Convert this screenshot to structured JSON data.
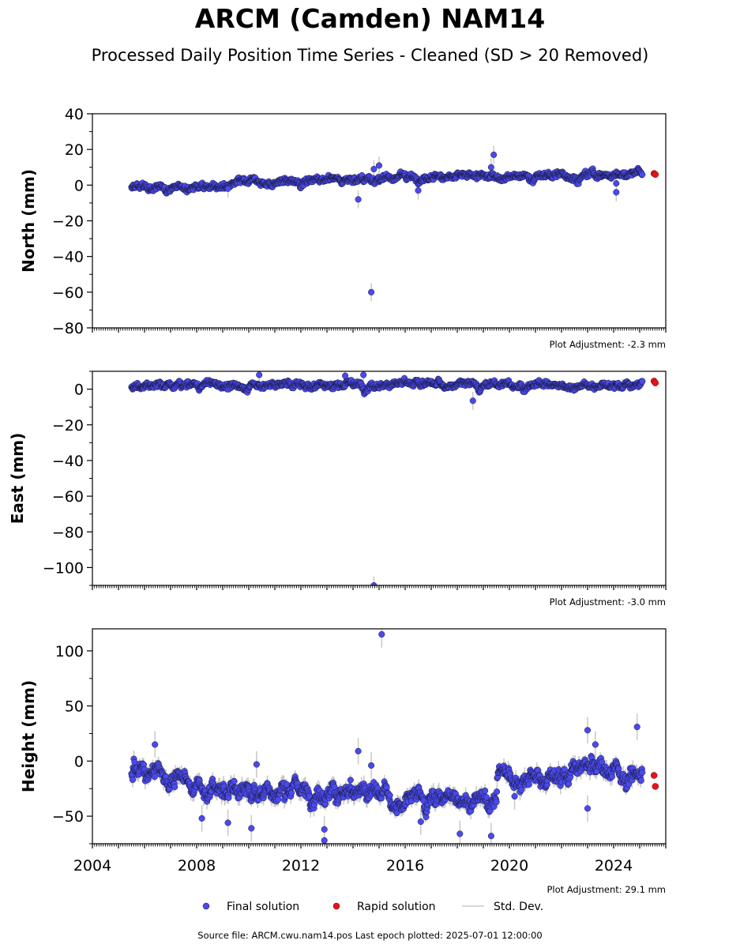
{
  "header": {
    "title": "ARCM (Camden) NAM14",
    "subtitle": "Processed Daily Position Time Series - Cleaned (SD > 20 Removed)"
  },
  "footer": {
    "source": "Source file: ARCM.cwu.nam14.pos  Last epoch plotted: 2025-07-01 12:00:00"
  },
  "legend": {
    "final": "Final solution",
    "rapid": "Rapid solution",
    "sd": "Std. Dev."
  },
  "colors": {
    "final": "#4a4aec",
    "rapid": "#e8121a",
    "sd": "#c8c8c8"
  },
  "chart_data": [
    {
      "type": "scatter",
      "panel": "north",
      "ylabel": "North (mm)",
      "ylim": [
        -80,
        40
      ],
      "yticks": [
        -80,
        -60,
        -40,
        -20,
        0,
        20,
        40
      ],
      "ytick_labels": [
        "−80",
        "−60",
        "−40",
        "−20",
        "0",
        "20",
        "40"
      ],
      "xlim": [
        2004.0,
        2026.0
      ],
      "xticks": [],
      "adjustment": "Plot Adjustment: -2.3 mm",
      "trend": [
        [
          2005.5,
          -2.0
        ],
        [
          2012.0,
          2.5
        ],
        [
          2017.0,
          5.0
        ],
        [
          2020.0,
          5.0
        ],
        [
          2024.0,
          6.0
        ],
        [
          2025.1,
          7.0
        ]
      ],
      "noise": 2.0,
      "outliers": [
        [
          2009.2,
          -2.0
        ],
        [
          2014.2,
          -8.0
        ],
        [
          2014.8,
          9.0
        ],
        [
          2014.7,
          -60.0
        ],
        [
          2016.5,
          -3.0
        ],
        [
          2019.4,
          17.0
        ],
        [
          2019.3,
          10.0
        ],
        [
          2024.1,
          1.0
        ],
        [
          2024.1,
          -4.0
        ],
        [
          2015.0,
          11.0
        ]
      ],
      "rapid": [
        [
          2025.55,
          6.5
        ],
        [
          2025.6,
          6.0
        ]
      ]
    },
    {
      "type": "scatter",
      "panel": "east",
      "ylabel": "East (mm)",
      "ylim": [
        -110,
        10
      ],
      "yticks": [
        -100,
        -80,
        -60,
        -40,
        -20,
        0
      ],
      "ytick_labels": [
        "−100",
        "−80",
        "−60",
        "−40",
        "−20",
        "0"
      ],
      "xlim": [
        2004.0,
        2026.0
      ],
      "xticks": [],
      "adjustment": "Plot Adjustment: -3.0 mm",
      "trend": [
        [
          2005.5,
          1.5
        ],
        [
          2015.0,
          2.5
        ],
        [
          2020.0,
          2.5
        ],
        [
          2025.1,
          2.0
        ]
      ],
      "noise": 2.0,
      "outliers": [
        [
          2010.4,
          8.0
        ],
        [
          2013.7,
          7.5
        ],
        [
          2014.4,
          8.0
        ],
        [
          2018.6,
          -6.5
        ],
        [
          2014.8,
          -110.0
        ]
      ],
      "rapid": [
        [
          2025.55,
          4.5
        ],
        [
          2025.6,
          3.5
        ]
      ]
    },
    {
      "type": "scatter",
      "panel": "height",
      "ylabel": "Height (mm)",
      "ylim": [
        -75,
        120
      ],
      "yticks": [
        -50,
        0,
        50,
        100
      ],
      "ytick_labels": [
        "−50",
        "0",
        "50",
        "100"
      ],
      "xlim": [
        2004.0,
        2026.0
      ],
      "xticks": [
        2004,
        2008,
        2012,
        2016,
        2020,
        2024
      ],
      "adjustment": "Plot Adjustment: 29.1 mm",
      "trend": [
        [
          2005.5,
          -10.0
        ],
        [
          2007.0,
          -15.0
        ],
        [
          2009.0,
          -28.0
        ],
        [
          2012.0,
          -25.0
        ],
        [
          2014.0,
          -32.0
        ],
        [
          2016.0,
          -37.0
        ],
        [
          2018.0,
          -33.0
        ],
        [
          2019.5,
          -40.0
        ],
        [
          2019.55,
          -10.0
        ],
        [
          2021.0,
          -12.0
        ],
        [
          2023.0,
          -8.0
        ],
        [
          2025.1,
          -15.0
        ]
      ],
      "noise": 8.0,
      "outliers": [
        [
          2006.4,
          15.0
        ],
        [
          2008.2,
          -52.0
        ],
        [
          2009.2,
          -56.0
        ],
        [
          2010.1,
          -61.0
        ],
        [
          2010.3,
          -3.0
        ],
        [
          2012.9,
          -72.0
        ],
        [
          2012.9,
          -62.0
        ],
        [
          2014.2,
          9.0
        ],
        [
          2014.7,
          -4.0
        ],
        [
          2015.1,
          115.0
        ],
        [
          2016.6,
          -55.0
        ],
        [
          2018.1,
          -66.0
        ],
        [
          2019.3,
          -68.0
        ],
        [
          2023.0,
          28.0
        ],
        [
          2023.0,
          -43.0
        ],
        [
          2023.3,
          15.0
        ],
        [
          2024.9,
          31.0
        ],
        [
          2020.2,
          -32.0
        ]
      ],
      "rapid": [
        [
          2025.55,
          -13.0
        ],
        [
          2025.6,
          -23.0
        ]
      ]
    }
  ]
}
